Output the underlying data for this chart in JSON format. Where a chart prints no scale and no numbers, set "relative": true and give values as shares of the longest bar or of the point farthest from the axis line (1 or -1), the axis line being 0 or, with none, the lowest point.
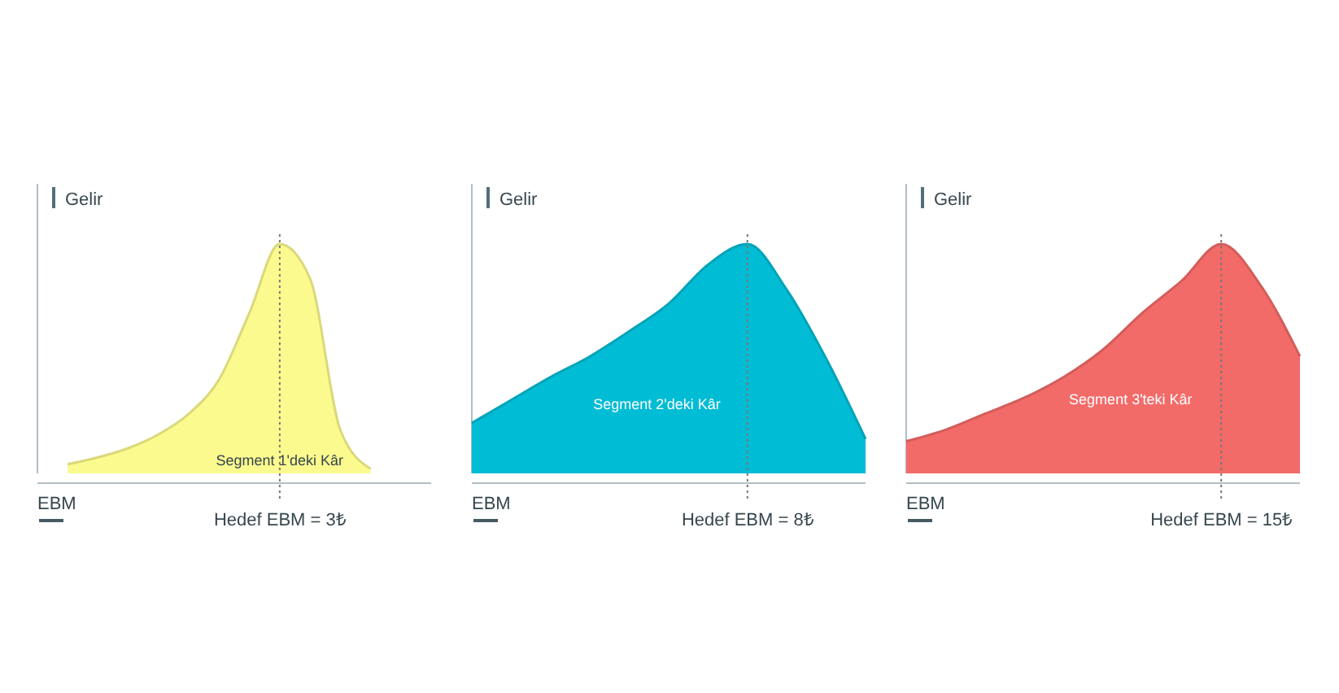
{
  "chart_data": [
    {
      "type": "area",
      "relative": true,
      "ylabel": "Gelir",
      "xlabel": "EBM",
      "categories": [
        null,
        null,
        null,
        null,
        null,
        null,
        null,
        null,
        null,
        null,
        null,
        null,
        null,
        null
      ],
      "series": [
        {
          "color": "#fbfa8e",
          "values": [
            null,
            0.04,
            0.07,
            0.11,
            0.17,
            0.26,
            0.41,
            0.7,
            1,
            0.85,
            0.19,
            0.02,
            null,
            null
          ]
        }
      ],
      "annotations": [
        "Segment 1'deki Kâr",
        "Hedef EBM = 3₺"
      ]
    },
    {
      "type": "area",
      "relative": true,
      "ylabel": "Gelir",
      "xlabel": "EBM",
      "categories": [
        null,
        null,
        null,
        null,
        null,
        null,
        null,
        null,
        null,
        null,
        null
      ],
      "series": [
        {
          "color": "#00bcd4",
          "values": [
            0.22,
            0.32,
            0.42,
            0.51,
            0.62,
            0.74,
            0.91,
            1,
            0.8,
            0.5,
            0.15
          ]
        }
      ],
      "annotations": [
        "Segment 2'deki Kâr",
        "Hedef EBM = 8₺"
      ]
    },
    {
      "type": "area",
      "relative": true,
      "ylabel": "Gelir",
      "xlabel": "EBM",
      "categories": [
        null,
        null,
        null,
        null,
        null,
        null,
        null,
        null,
        null,
        null,
        null
      ],
      "series": [
        {
          "color": "#f26b68",
          "values": [
            0.14,
            0.19,
            0.26,
            0.33,
            0.42,
            0.54,
            0.7,
            0.84,
            1,
            0.82,
            0.51
          ]
        }
      ],
      "annotations": [
        "Segment 3'teki Kâr",
        "Hedef EBM = 15₺"
      ]
    }
  ]
}
